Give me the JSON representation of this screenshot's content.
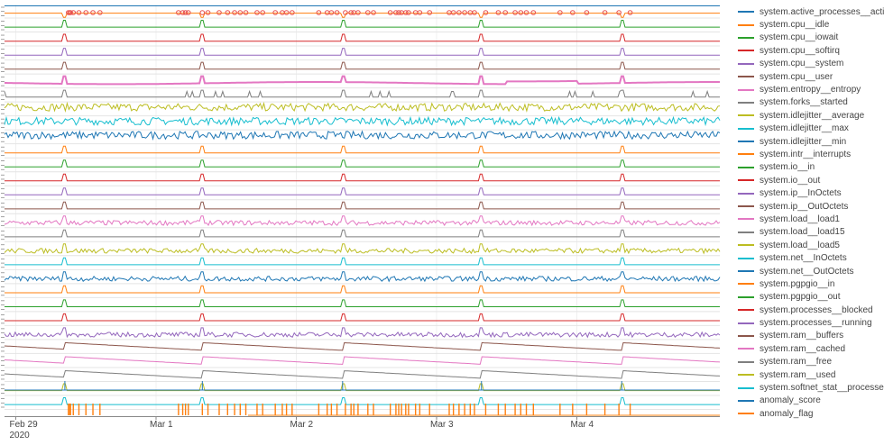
{
  "chart_data": {
    "type": "line",
    "layout": "stacked-subplots",
    "x_axis": {
      "ticks": [
        {
          "label": "Feb 29",
          "sublabel": "2020"
        },
        {
          "label": "Mar 1",
          "sublabel": ""
        },
        {
          "label": "Mar 2",
          "sublabel": ""
        },
        {
          "label": "Mar 3",
          "sublabel": ""
        },
        {
          "label": "Mar 4",
          "sublabel": ""
        }
      ]
    },
    "anomaly_markers": {
      "color": "#e8504f",
      "x": [
        0.375,
        0.385,
        0.39,
        0.41,
        0.45,
        0.5,
        0.55,
        0.6,
        1.16,
        1.19,
        1.21,
        1.23,
        1.33,
        1.37,
        1.45,
        1.51,
        1.56,
        1.6,
        1.64,
        1.72,
        1.76,
        1.85,
        1.9,
        1.93,
        1.97,
        2.16,
        2.22,
        2.25,
        2.29,
        2.35,
        2.39,
        2.41,
        2.44,
        2.51,
        2.55,
        2.67,
        2.71,
        2.73,
        2.75,
        2.78,
        2.8,
        2.85,
        2.88,
        2.95,
        3.09,
        3.12,
        3.16,
        3.2,
        3.24,
        3.27,
        3.35,
        3.44,
        3.49,
        3.56,
        3.6,
        3.64,
        3.69,
        3.88,
        3.97,
        4.07,
        4.2,
        4.3,
        4.38
      ]
    },
    "series": [
      {
        "name": "system.active_processes__active",
        "color": "#1f77b4"
      },
      {
        "name": "system.cpu__idle",
        "color": "#ff7f0e"
      },
      {
        "name": "system.cpu__iowait",
        "color": "#2ca02c"
      },
      {
        "name": "system.cpu__softirq",
        "color": "#d62728"
      },
      {
        "name": "system.cpu__system",
        "color": "#9467bd"
      },
      {
        "name": "system.cpu__user",
        "color": "#8c564b"
      },
      {
        "name": "system.entropy__entropy",
        "color": "#e377c2"
      },
      {
        "name": "system.forks__started",
        "color": "#7f7f7f"
      },
      {
        "name": "system.idlejitter__average",
        "color": "#bcbd22"
      },
      {
        "name": "system.idlejitter__max",
        "color": "#17becf"
      },
      {
        "name": "system.idlejitter__min",
        "color": "#1f77b4"
      },
      {
        "name": "system.intr__interrupts",
        "color": "#ff7f0e"
      },
      {
        "name": "system.io__in",
        "color": "#2ca02c"
      },
      {
        "name": "system.io__out",
        "color": "#d62728"
      },
      {
        "name": "system.ip__InOctets",
        "color": "#9467bd"
      },
      {
        "name": "system.ip__OutOctets",
        "color": "#8c564b"
      },
      {
        "name": "system.load__load1",
        "color": "#e377c2"
      },
      {
        "name": "system.load__load15",
        "color": "#7f7f7f"
      },
      {
        "name": "system.load__load5",
        "color": "#bcbd22"
      },
      {
        "name": "system.net__InOctets",
        "color": "#17becf"
      },
      {
        "name": "system.net__OutOctets",
        "color": "#1f77b4"
      },
      {
        "name": "system.pgpgio__in",
        "color": "#ff7f0e"
      },
      {
        "name": "system.pgpgio__out",
        "color": "#2ca02c"
      },
      {
        "name": "system.processes__blocked",
        "color": "#d62728"
      },
      {
        "name": "system.processes__running",
        "color": "#9467bd"
      },
      {
        "name": "system.ram__buffers",
        "color": "#8c564b"
      },
      {
        "name": "system.ram__cached",
        "color": "#e377c2"
      },
      {
        "name": "system.ram__free",
        "color": "#7f7f7f"
      },
      {
        "name": "system.ram__used",
        "color": "#bcbd22"
      },
      {
        "name": "system.softnet_stat__processed",
        "color": "#17becf"
      },
      {
        "name": "anomaly_score",
        "color": "#1f77b4"
      },
      {
        "name": "anomaly_flag",
        "color": "#ff7f0e"
      }
    ]
  }
}
